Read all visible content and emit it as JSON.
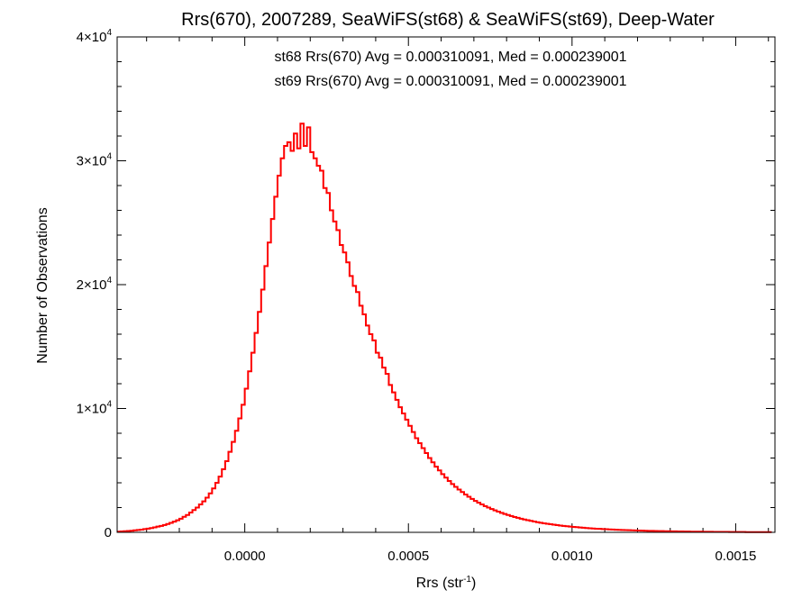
{
  "chart_data": {
    "type": "histogram",
    "title": "Rrs(670), 2007289, SeaWiFS(st68) & SeaWiFS(st69), Deep-Water",
    "xlabel": {
      "base": "Rrs (str",
      "sup": "-1",
      "tail": ")"
    },
    "ylabel": "Number of Observations",
    "xlim": [
      -0.00039,
      0.00162
    ],
    "ylim": [
      0,
      40000
    ],
    "x_ticks": [
      0.0,
      0.0005,
      0.001,
      0.0015
    ],
    "x_tick_labels": [
      "0.0000",
      "0.0005",
      "0.0010",
      "0.0015"
    ],
    "y_ticks": [
      {
        "value": 0,
        "label": "0",
        "exp": ""
      },
      {
        "value": 10000,
        "label": "1×10",
        "exp": "4"
      },
      {
        "value": 20000,
        "label": "2×10",
        "exp": "4"
      },
      {
        "value": 30000,
        "label": "3×10",
        "exp": "4"
      },
      {
        "value": 40000,
        "label": "4×10",
        "exp": "4"
      }
    ],
    "annotations": [
      {
        "text": "st68 Rrs(670) Avg = 0.000310091, Med = 0.000239001",
        "color": "#000000"
      },
      {
        "text": "st69 Rrs(670) Avg = 0.000310091, Med = 0.000239001",
        "color": "#ff0000"
      }
    ],
    "series": [
      {
        "name": "st68",
        "color": "#000000"
      },
      {
        "name": "st69",
        "color": "#ff0000"
      }
    ],
    "bin_width": 1e-05,
    "x": [
      -0.00039,
      -0.00038,
      -0.00037,
      -0.00036,
      -0.00035,
      -0.00034,
      -0.00033,
      -0.00032,
      -0.00031,
      -0.0003,
      -0.00029,
      -0.00028,
      -0.00027,
      -0.00026,
      -0.00025,
      -0.00024,
      -0.00023,
      -0.00022,
      -0.00021,
      -0.0002,
      -0.00019,
      -0.00018,
      -0.00017,
      -0.00016,
      -0.00015,
      -0.00014,
      -0.00013,
      -0.00012,
      -0.00011,
      -0.0001,
      -9e-05,
      -8e-05,
      -7e-05,
      -6e-05,
      -5e-05,
      -4e-05,
      -3e-05,
      -2e-05,
      -1e-05,
      0.0,
      1e-05,
      2e-05,
      3e-05,
      4e-05,
      5e-05,
      6e-05,
      7e-05,
      8e-05,
      9e-05,
      0.0001,
      0.00011,
      0.00012,
      0.00013,
      0.00014,
      0.00015,
      0.00016,
      0.00017,
      0.00018,
      0.00019,
      0.0002,
      0.00021,
      0.00022,
      0.00023,
      0.00024,
      0.00025,
      0.00026,
      0.00027,
      0.00028,
      0.00029,
      0.0003,
      0.00031,
      0.00032,
      0.00033,
      0.00034,
      0.00035,
      0.00036,
      0.00037,
      0.00038,
      0.00039,
      0.0004,
      0.00041,
      0.00042,
      0.00043,
      0.00044,
      0.00045,
      0.00046,
      0.00047,
      0.00048,
      0.00049,
      0.0005,
      0.00051,
      0.00052,
      0.00053,
      0.00054,
      0.00055,
      0.00056,
      0.00057,
      0.00058,
      0.00059,
      0.0006,
      0.00061,
      0.00062,
      0.00063,
      0.00064,
      0.00065,
      0.00066,
      0.00067,
      0.00068,
      0.00069,
      0.0007,
      0.00071,
      0.00072,
      0.00073,
      0.00074,
      0.00075,
      0.00076,
      0.00077,
      0.00078,
      0.00079,
      0.0008,
      0.00081,
      0.00082,
      0.00083,
      0.00084,
      0.00085,
      0.00086,
      0.00087,
      0.00088,
      0.00089,
      0.0009,
      0.00091,
      0.00092,
      0.00093,
      0.00094,
      0.00095,
      0.00096,
      0.00097,
      0.00098,
      0.00099,
      0.001,
      0.00101,
      0.00102,
      0.00103,
      0.00104,
      0.00105,
      0.00106,
      0.00107,
      0.00108,
      0.00109,
      0.0011,
      0.00111,
      0.00112,
      0.00113,
      0.00114,
      0.00115,
      0.00116,
      0.00117,
      0.00118,
      0.00119,
      0.0012,
      0.00121,
      0.00122,
      0.00123,
      0.00124,
      0.00125,
      0.00126,
      0.00127,
      0.00128,
      0.00129,
      0.0013,
      0.00131,
      0.00132,
      0.00133,
      0.00134,
      0.00135,
      0.00136,
      0.00137,
      0.00138,
      0.00139,
      0.0014,
      0.00141,
      0.00142,
      0.00143,
      0.00144,
      0.00145,
      0.00146,
      0.00147,
      0.00148,
      0.00149,
      0.0015,
      0.00151,
      0.00152,
      0.00153,
      0.00154,
      0.00155,
      0.00156,
      0.00157,
      0.00158,
      0.00159,
      0.0016,
      0.00161
    ],
    "y": [
      50,
      70,
      90,
      110,
      130,
      160,
      190,
      220,
      260,
      300,
      350,
      400,
      460,
      520,
      590,
      670,
      760,
      860,
      970,
      1100,
      1250,
      1400,
      1600,
      1800,
      2000,
      2250,
      2500,
      2800,
      3150,
      3550,
      4000,
      4500,
      5100,
      5750,
      6500,
      7300,
      8200,
      9200,
      10300,
      11600,
      13000,
      14500,
      16100,
      17800,
      19600,
      21500,
      23400,
      25300,
      27100,
      28800,
      30200,
      31200,
      31500,
      30800,
      32200,
      31000,
      33000,
      31200,
      32700,
      30700,
      30200,
      29600,
      29200,
      27800,
      27400,
      26000,
      25100,
      24400,
      23200,
      22600,
      21800,
      20700,
      19900,
      19400,
      18300,
      17600,
      16700,
      16000,
      15500,
      14500,
      14100,
      13300,
      12800,
      11900,
      11300,
      10700,
      10100,
      9600,
      9100,
      8600,
      8100,
      7600,
      7200,
      6800,
      6400,
      6000,
      5650,
      5300,
      5000,
      4700,
      4420,
      4150,
      3900,
      3670,
      3450,
      3250,
      3050,
      2870,
      2700,
      2540,
      2390,
      2250,
      2120,
      2000,
      1880,
      1770,
      1670,
      1570,
      1480,
      1400,
      1320,
      1240,
      1170,
      1100,
      1040,
      980,
      925,
      870,
      820,
      775,
      730,
      690,
      650,
      615,
      580,
      550,
      520,
      490,
      465,
      440,
      415,
      392,
      370,
      350,
      330,
      312,
      295,
      280,
      264,
      250,
      236,
      223,
      211,
      200,
      189,
      179,
      169,
      160,
      151,
      143,
      135,
      128,
      121,
      115,
      109,
      103,
      97,
      92,
      87,
      82,
      78,
      74,
      70,
      66,
      62,
      59,
      56,
      53,
      50,
      47,
      45,
      42,
      40,
      38,
      36,
      34,
      32,
      30,
      28,
      27,
      25,
      24,
      22,
      21,
      20,
      19,
      18,
      17,
      16,
      15
    ]
  }
}
